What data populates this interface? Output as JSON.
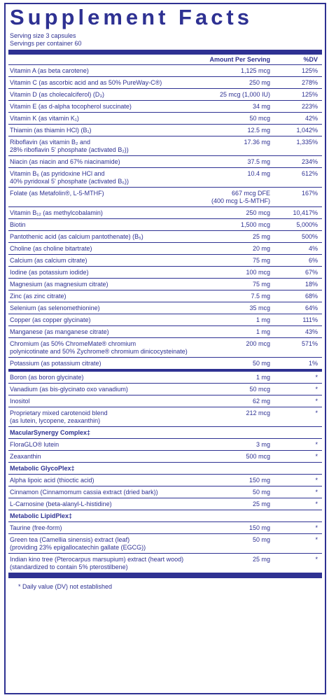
{
  "title": "Supplement Facts",
  "serving_size": "Serving size 3 capsules",
  "servings_per_container": "Servings per container 60",
  "column_headers": {
    "amount": "Amount Per Serving",
    "dv": "%DV"
  },
  "sections": [
    {
      "rows": [
        {
          "name": [
            "Vitamin A (as beta carotene)"
          ],
          "amount": [
            "1,125 mcg"
          ],
          "dv": "125%"
        },
        {
          "name": [
            "Vitamin C (as ascorbic acid and as 50% PureWay-C®)"
          ],
          "amount": [
            "250 mg"
          ],
          "dv": "278%"
        },
        {
          "name": [
            "Vitamin D (as cholecalciferol) (D₃)"
          ],
          "amount": [
            "25 mcg (1,000 IU)"
          ],
          "dv": "125%"
        },
        {
          "name": [
            "Vitamin E (as d-alpha tocopherol succinate)"
          ],
          "amount": [
            "34 mg"
          ],
          "dv": "223%"
        },
        {
          "name": [
            "Vitamin K (as vitamin K₁)"
          ],
          "amount": [
            "50 mcg"
          ],
          "dv": "42%"
        },
        {
          "name": [
            "Thiamin (as thiamin HCl) (B₁)"
          ],
          "amount": [
            "12.5 mg"
          ],
          "dv": "1,042%"
        },
        {
          "name": [
            "Riboflavin (as vitamin B₂ and",
            "28% riboflavin 5' phosphate (activated B₂))"
          ],
          "amount": [
            "17.36 mg"
          ],
          "dv": "1,335%"
        },
        {
          "name": [
            "Niacin (as niacin and 67% niacinamide)"
          ],
          "amount": [
            "37.5 mg"
          ],
          "dv": "234%"
        },
        {
          "name": [
            "Vitamin B₆ (as pyridoxine HCl and",
            "40% pyridoxal 5' phosphate (activated B₆))"
          ],
          "amount": [
            "10.4 mg"
          ],
          "dv": "612%"
        },
        {
          "name": [
            "Folate (as Metafolin®, L-5-MTHF)"
          ],
          "amount": [
            "667 mcg DFE",
            "(400 mcg L-5-MTHF)"
          ],
          "dv": "167%"
        },
        {
          "name": [
            "Vitamin B₁₂ (as methylcobalamin)"
          ],
          "amount": [
            "250 mcg"
          ],
          "dv": "10,417%"
        },
        {
          "name": [
            "Biotin"
          ],
          "amount": [
            "1,500 mcg"
          ],
          "dv": "5,000%"
        },
        {
          "name": [
            "Pantothenic acid (as calcium pantothenate) (B₅)"
          ],
          "amount": [
            "25 mg"
          ],
          "dv": "500%"
        },
        {
          "name": [
            "Choline (as choline bitartrate)"
          ],
          "amount": [
            "20 mg"
          ],
          "dv": "4%"
        },
        {
          "name": [
            "Calcium (as calcium citrate)"
          ],
          "amount": [
            "75 mg"
          ],
          "dv": "6%"
        },
        {
          "name": [
            "Iodine (as potassium iodide)"
          ],
          "amount": [
            "100 mcg"
          ],
          "dv": "67%"
        },
        {
          "name": [
            "Magnesium (as magnesium citrate)"
          ],
          "amount": [
            "75 mg"
          ],
          "dv": "18%"
        },
        {
          "name": [
            "Zinc (as zinc citrate)"
          ],
          "amount": [
            "7.5 mg"
          ],
          "dv": "68%"
        },
        {
          "name": [
            "Selenium (as selenomethionine)"
          ],
          "amount": [
            "35 mcg"
          ],
          "dv": "64%"
        },
        {
          "name": [
            "Copper (as copper glycinate)"
          ],
          "amount": [
            "1 mg"
          ],
          "dv": "111%"
        },
        {
          "name": [
            "Manganese (as manganese citrate)"
          ],
          "amount": [
            "1 mg"
          ],
          "dv": "43%"
        },
        {
          "name": [
            "Chromium (as 50% ChromeMate® chromium",
            "polynicotinate and 50% Zychrome® chromium dinicocysteinate)"
          ],
          "amount": [
            "200 mcg"
          ],
          "dv": "571%"
        },
        {
          "name": [
            "Potassium (as potassium citrate)"
          ],
          "amount": [
            "50 mg"
          ],
          "dv": "1%"
        }
      ]
    },
    {
      "rows": [
        {
          "name": [
            "Boron (as boron glycinate)"
          ],
          "amount": [
            "1 mg"
          ],
          "dv": "*"
        },
        {
          "name": [
            "Vanadium (as bis-glycinato oxo vanadium)"
          ],
          "amount": [
            "50 mcg"
          ],
          "dv": "*"
        },
        {
          "name": [
            "Inositol"
          ],
          "amount": [
            "62 mg"
          ],
          "dv": "*"
        },
        {
          "name": [
            "Proprietary mixed carotenoid blend",
            "(as lutein, lycopene, zeaxanthin)"
          ],
          "amount": [
            "212 mcg"
          ],
          "dv": "*"
        },
        {
          "heading": "MacularSynergy Complex‡"
        },
        {
          "name": [
            "FloraGLO® lutein"
          ],
          "amount": [
            "3 mg"
          ],
          "dv": "*"
        },
        {
          "name": [
            "Zeaxanthin"
          ],
          "amount": [
            "500 mcg"
          ],
          "dv": "*"
        },
        {
          "heading": "Metabolic GlycoPlex‡"
        },
        {
          "name": [
            "Alpha lipoic acid (thioctic acid)"
          ],
          "amount": [
            "150 mg"
          ],
          "dv": "*"
        },
        {
          "name": [
            "Cinnamon (Cinnamomum cassia extract (dried bark))"
          ],
          "amount": [
            "50 mg"
          ],
          "dv": "*"
        },
        {
          "name": [
            "L-Carnosine (beta-alanyl-L-histidine)"
          ],
          "amount": [
            "25 mg"
          ],
          "dv": "*"
        },
        {
          "heading": "Metabolic LipidPlex‡"
        },
        {
          "name": [
            "Taurine (free-form)"
          ],
          "amount": [
            "150 mg"
          ],
          "dv": "*"
        },
        {
          "name": [
            "Green tea (Camellia sinensis) extract (leaf)",
            "(providing 23% epigallocatechin gallate (EGCG))"
          ],
          "amount": [
            "50 mg"
          ],
          "dv": "*"
        },
        {
          "name": [
            "Indian kino tree (Pterocarpus marsupium) extract (heart wood)",
            "(standardized to contain 5% pterostilbene)"
          ],
          "amount": [
            "25 mg"
          ],
          "dv": "*"
        }
      ]
    }
  ],
  "footnote": "* Daily value (DV) not established"
}
